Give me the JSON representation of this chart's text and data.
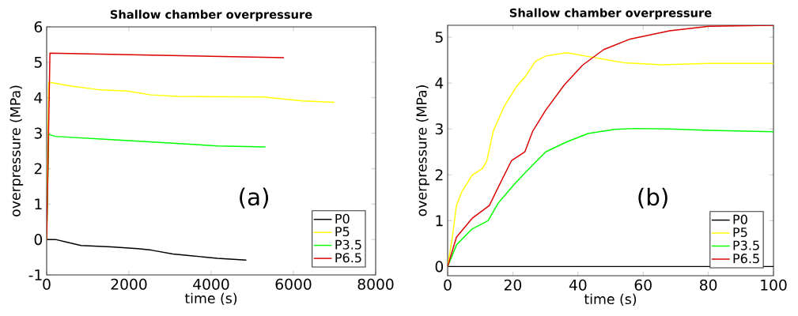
{
  "chart_data": [
    {
      "type": "line",
      "title": "Shallow chamber overpressure",
      "xlabel": "time (s)",
      "ylabel": "overpressure (MPa)",
      "annotations": [
        "(a)"
      ],
      "legend": "bottom right",
      "xlim": [
        0,
        8000
      ],
      "ylim": [
        -1,
        6
      ],
      "xticks": [
        0,
        2000,
        4000,
        6000,
        8000
      ],
      "yticks": [
        -1,
        0,
        1,
        2,
        3,
        4,
        5,
        6
      ],
      "series": [
        {
          "name": "P0",
          "color": "#000000",
          "x": [
            0,
            214,
            466,
            835,
            1573,
            2214,
            2544,
            3068,
            3515,
            4155,
            4855
          ],
          "values": [
            0,
            0,
            -0.07,
            -0.17,
            -0.21,
            -0.26,
            -0.3,
            -0.41,
            -0.46,
            -0.53,
            -0.58
          ]
        },
        {
          "name": "P5",
          "color": "#ffff00",
          "x": [
            0,
            50,
            600,
            1240,
            1960,
            2540,
            3180,
            5260,
            6230,
            7000
          ],
          "values": [
            0,
            4.44,
            4.33,
            4.23,
            4.19,
            4.08,
            4.04,
            4.02,
            3.91,
            3.87
          ]
        },
        {
          "name": "P3.5",
          "color": "#00ff00",
          "x": [
            0,
            50,
            200,
            1573,
            2738,
            4155,
            5320
          ],
          "values": [
            0,
            2.97,
            2.91,
            2.82,
            2.74,
            2.64,
            2.61
          ]
        },
        {
          "name": "P6.5",
          "color": "#dd0000",
          "x": [
            0,
            80,
            3000,
            5770
          ],
          "values": [
            0,
            5.26,
            5.19,
            5.13
          ]
        }
      ]
    },
    {
      "type": "line",
      "title": "Shallow chamber overpressure",
      "xlabel": "time (s)",
      "ylabel": "overpressure (MPa)",
      "annotations": [
        "(b)"
      ],
      "legend": "bottom right",
      "xlim": [
        0,
        100
      ],
      "ylim": [
        -0.2,
        5.26
      ],
      "xticks": [
        0,
        20,
        40,
        60,
        80,
        100
      ],
      "yticks": [
        0,
        1,
        2,
        3,
        4,
        5
      ],
      "series": [
        {
          "name": "P0",
          "color": "#000000",
          "x": [
            0,
            100
          ],
          "values": [
            0,
            0
          ]
        },
        {
          "name": "P5",
          "color": "#ffff00",
          "x": [
            0,
            1.45,
            2.7,
            4.3,
            7.5,
            10.7,
            12,
            14,
            17.2,
            21.2,
            23.7,
            26.9,
            30.1,
            36.6,
            44.7,
            54.4,
            65.7,
            80.2,
            100
          ],
          "values": [
            0,
            0.64,
            1.33,
            1.62,
            1.99,
            2.14,
            2.3,
            2.95,
            3.47,
            3.93,
            4.13,
            4.47,
            4.59,
            4.66,
            4.56,
            4.44,
            4.4,
            4.43,
            4.43
          ]
        },
        {
          "name": "P3.5",
          "color": "#00ff00",
          "x": [
            0,
            2.7,
            7.5,
            12.4,
            15.6,
            20.4,
            23.7,
            30.1,
            36.6,
            43.1,
            51.2,
            57.6,
            68.1,
            80.2,
            100
          ],
          "values": [
            0,
            0.47,
            0.82,
            1.0,
            1.39,
            1.79,
            2.04,
            2.5,
            2.72,
            2.9,
            2.99,
            3.01,
            3.0,
            2.97,
            2.94
          ]
        },
        {
          "name": "P6.5",
          "color": "#dd0000",
          "x": [
            0,
            2.7,
            7.5,
            12.8,
            15.6,
            19.6,
            23.7,
            26.1,
            30.1,
            35.8,
            41.4,
            47.9,
            56,
            68.1,
            80.2,
            100
          ],
          "values": [
            0,
            0.64,
            1.05,
            1.33,
            1.74,
            2.31,
            2.5,
            2.95,
            3.41,
            3.96,
            4.39,
            4.73,
            4.96,
            5.14,
            5.24,
            5.26
          ]
        }
      ]
    }
  ]
}
